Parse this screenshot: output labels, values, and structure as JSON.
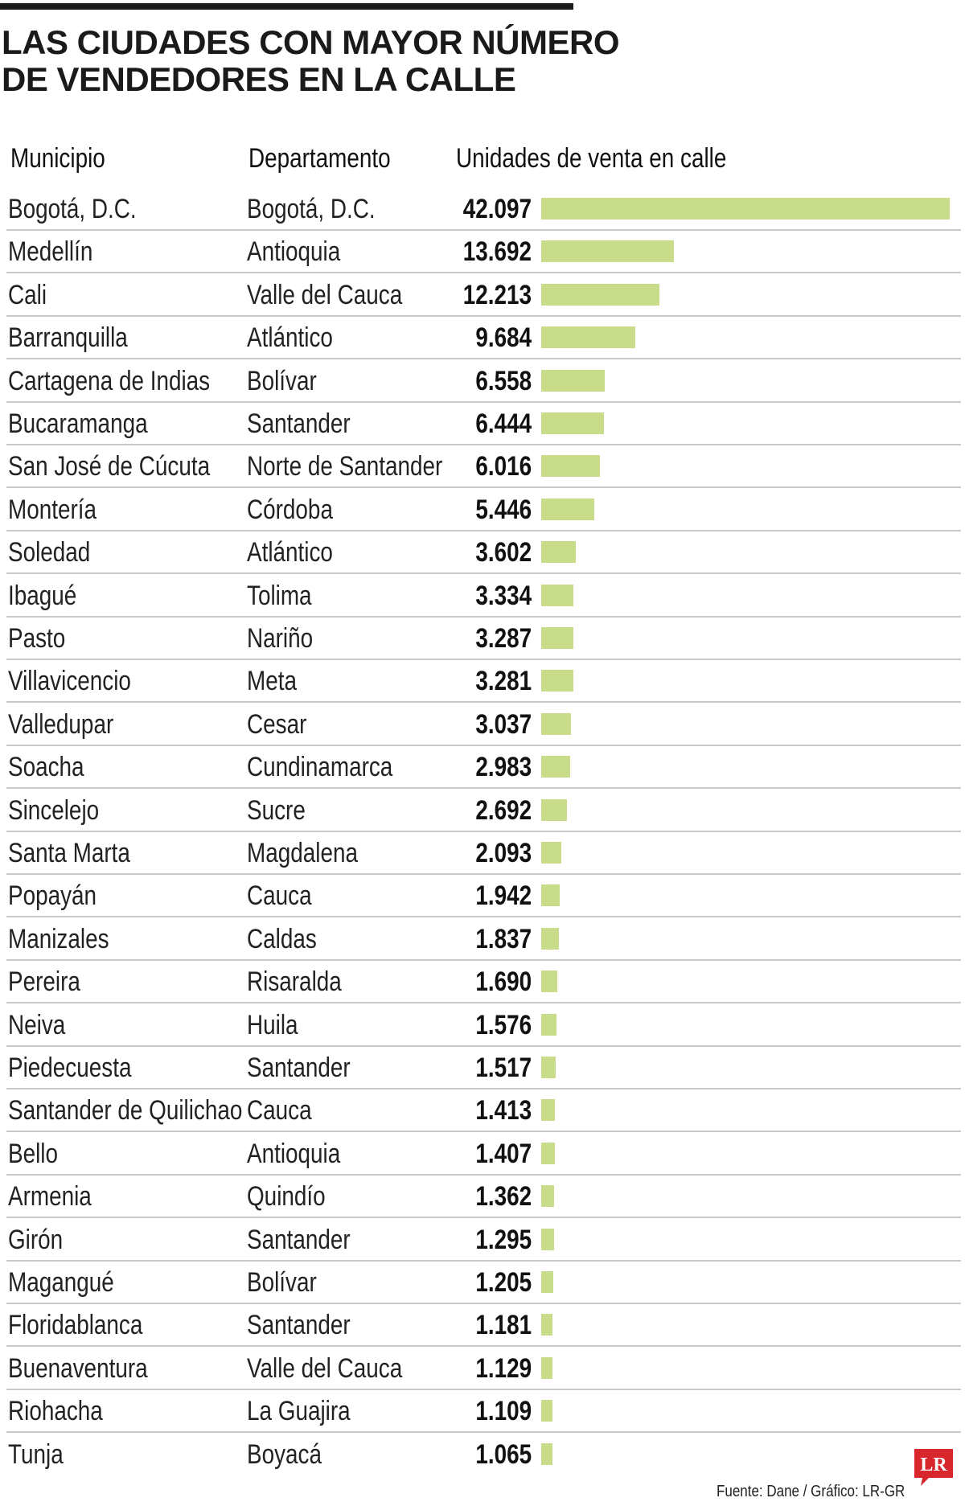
{
  "title_line1": "LAS CIUDADES CON MAYOR NÚMERO",
  "title_line2": "DE VENDEDORES EN LA CALLE",
  "headers": {
    "municipio": "Municipio",
    "departamento": "Departamento",
    "unidades": "Unidades de venta en calle"
  },
  "footer": "Fuente: Dane / Gráfico: LR-GR",
  "logo_text": "LR",
  "colors": {
    "bar": "#c8dc8a",
    "logo": "#d7262c"
  },
  "chart_data": {
    "type": "bar",
    "categories": [
      "Bogotá, D.C.",
      "Medellín",
      "Cali",
      "Barranquilla",
      "Cartagena de Indias",
      "Bucaramanga",
      "San José de Cúcuta",
      "Montería",
      "Soledad",
      "Ibagué",
      "Pasto",
      "Villavicencio",
      "Valledupar",
      "Soacha",
      "Sincelejo",
      "Santa Marta",
      "Popayán",
      "Manizales",
      "Pereira",
      "Neiva",
      "Piedecuesta",
      "Santander de Quilichao",
      "Bello",
      "Armenia",
      "Girón",
      "Magangué",
      "Floridablanca",
      "Buenaventura",
      "Riohacha",
      "Tunja"
    ],
    "departamentos": [
      "Bogotá, D.C.",
      "Antioquia",
      "Valle del Cauca",
      "Atlántico",
      "Bolívar",
      "Santander",
      "Norte de Santander",
      "Córdoba",
      "Atlántico",
      "Tolima",
      "Nariño",
      "Meta",
      "Cesar",
      "Cundinamarca",
      "Sucre",
      "Magdalena",
      "Cauca",
      "Caldas",
      "Risaralda",
      "Huila",
      "Santander",
      "Cauca",
      "Antioquia",
      "Quindío",
      "Santander",
      "Bolívar",
      "Santander",
      "Valle del Cauca",
      "La Guajira",
      "Boyacá"
    ],
    "value_labels": [
      "42.097",
      "13.692",
      "12.213",
      "9.684",
      "6.558",
      "6.444",
      "6.016",
      "5.446",
      "3.602",
      "3.334",
      "3.287",
      "3.281",
      "3.037",
      "2.983",
      "2.692",
      "2.093",
      "1.942",
      "1.837",
      "1.690",
      "1.576",
      "1.517",
      "1.413",
      "1.407",
      "1.362",
      "1.295",
      "1.205",
      "1.181",
      "1.129",
      "1.109",
      "1.065"
    ],
    "values": [
      42097,
      13692,
      12213,
      9684,
      6558,
      6444,
      6016,
      5446,
      3602,
      3334,
      3287,
      3281,
      3037,
      2983,
      2692,
      2093,
      1942,
      1837,
      1690,
      1576,
      1517,
      1413,
      1407,
      1362,
      1295,
      1205,
      1181,
      1129,
      1109,
      1065
    ],
    "orientation": "horizontal",
    "grid": false
  }
}
